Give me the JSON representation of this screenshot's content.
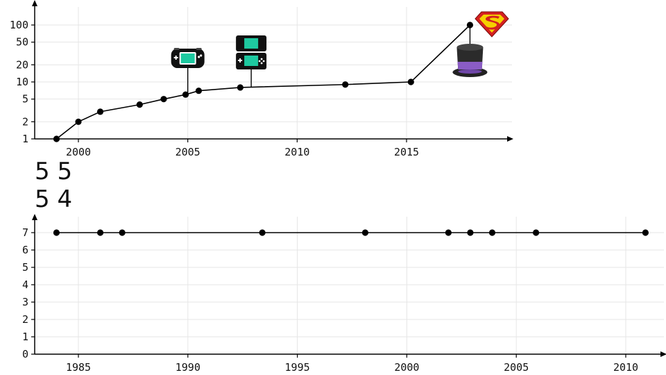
{
  "chart_data": [
    {
      "type": "line",
      "yscale": "log",
      "xlim": [
        1998,
        2020
      ],
      "ylim": [
        1,
        150
      ],
      "x_ticks": [
        2000,
        2005,
        2010,
        2015
      ],
      "y_ticks": [
        1,
        2,
        5,
        10,
        20,
        50,
        100
      ],
      "grid": true,
      "points": [
        {
          "x": 1999.0,
          "y": 1
        },
        {
          "x": 2000.0,
          "y": 2
        },
        {
          "x": 2001.0,
          "y": 3
        },
        {
          "x": 2002.8,
          "y": 4
        },
        {
          "x": 2003.9,
          "y": 5
        },
        {
          "x": 2004.9,
          "y": 6
        },
        {
          "x": 2005.5,
          "y": 7
        },
        {
          "x": 2007.4,
          "y": 8
        },
        {
          "x": 2012.2,
          "y": 9
        },
        {
          "x": 2015.2,
          "y": 10
        },
        {
          "x": 2017.9,
          "y": 100
        }
      ],
      "annotations": [
        {
          "icon": "gameboy-advance-icon",
          "x": 2005.0
        },
        {
          "icon": "nintendo-ds-icon",
          "x": 2007.9
        },
        {
          "icon": "top-hat-icon",
          "x": 2017.9
        },
        {
          "icon": "superman-logo-icon",
          "x": 2018.9
        }
      ]
    },
    {
      "type": "line",
      "xlim": [
        1983,
        2012
      ],
      "ylim": [
        0,
        8
      ],
      "x_ticks": [
        1985,
        1990,
        1995,
        2000,
        2005,
        2010
      ],
      "y_ticks": [
        0,
        1,
        2,
        3,
        4,
        5,
        6,
        7
      ],
      "grid": true,
      "points": [
        {
          "x": 1984.0,
          "y": 7
        },
        {
          "x": 1986.0,
          "y": 7
        },
        {
          "x": 1987.0,
          "y": 7
        },
        {
          "x": 1993.4,
          "y": 7
        },
        {
          "x": 1998.1,
          "y": 7
        },
        {
          "x": 2001.9,
          "y": 7
        },
        {
          "x": 2002.9,
          "y": 7
        },
        {
          "x": 2003.9,
          "y": 7
        },
        {
          "x": 2005.9,
          "y": 7
        },
        {
          "x": 2010.9,
          "y": 7
        }
      ]
    }
  ],
  "overlay": {
    "line1": "5 5",
    "line2": "5 4"
  },
  "colors": {
    "line": "#000000",
    "grid": "#e6e6e6",
    "screen": "#1ec9a0",
    "hat_band": "#8a5cc4",
    "superman_red": "#d42020",
    "superman_yellow": "#f5d000"
  }
}
